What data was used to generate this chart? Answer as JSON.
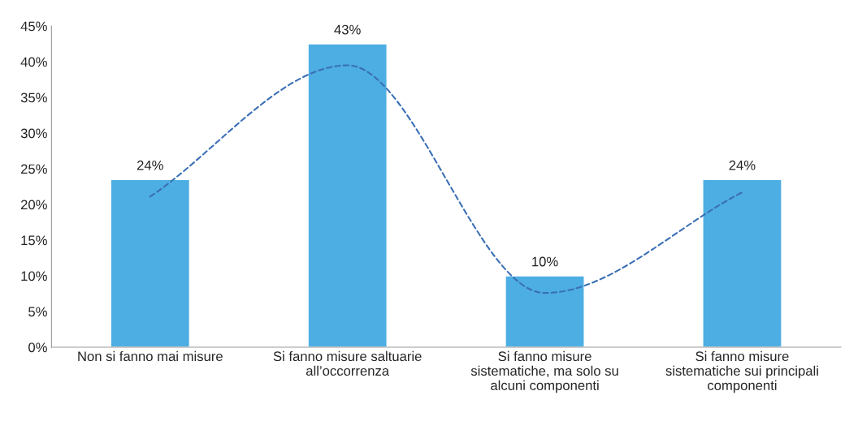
{
  "chart_data": {
    "type": "bar",
    "categories": [
      "Non si fanno mai misure",
      "Si fanno misure saltuarie\nall’occorrenza",
      "Si fanno misure\nsistematiche, ma solo su\nalcuni componenti",
      "Si fanno misure\nsistematiche sui principali\ncomponenti"
    ],
    "series": [
      {
        "color": "#4daee3",
        "values": [
          23.5,
          42.5,
          10,
          23.5
        ],
        "value_labels": [
          "24%",
          "43%",
          "10%",
          "24%"
        ]
      },
      {
        "type": "line",
        "color": "#3a6fb5",
        "line_style": "dashed",
        "values": [
          21.1,
          39.5,
          7.6,
          21.7
        ]
      }
    ],
    "ylim": [
      0,
      45
    ],
    "yticks": [
      {
        "value": 0,
        "label": "0%"
      },
      {
        "value": 5,
        "label": "5%"
      },
      {
        "value": 10,
        "label": "10%"
      },
      {
        "value": 15,
        "label": "15%"
      },
      {
        "value": 20,
        "label": "20%"
      },
      {
        "value": 25,
        "label": "25%"
      },
      {
        "value": 30,
        "label": "30%"
      },
      {
        "value": 35,
        "label": "35%"
      },
      {
        "value": 40,
        "label": "40%"
      },
      {
        "value": 45,
        "label": "45%"
      }
    ],
    "grid": false,
    "legend": false
  }
}
